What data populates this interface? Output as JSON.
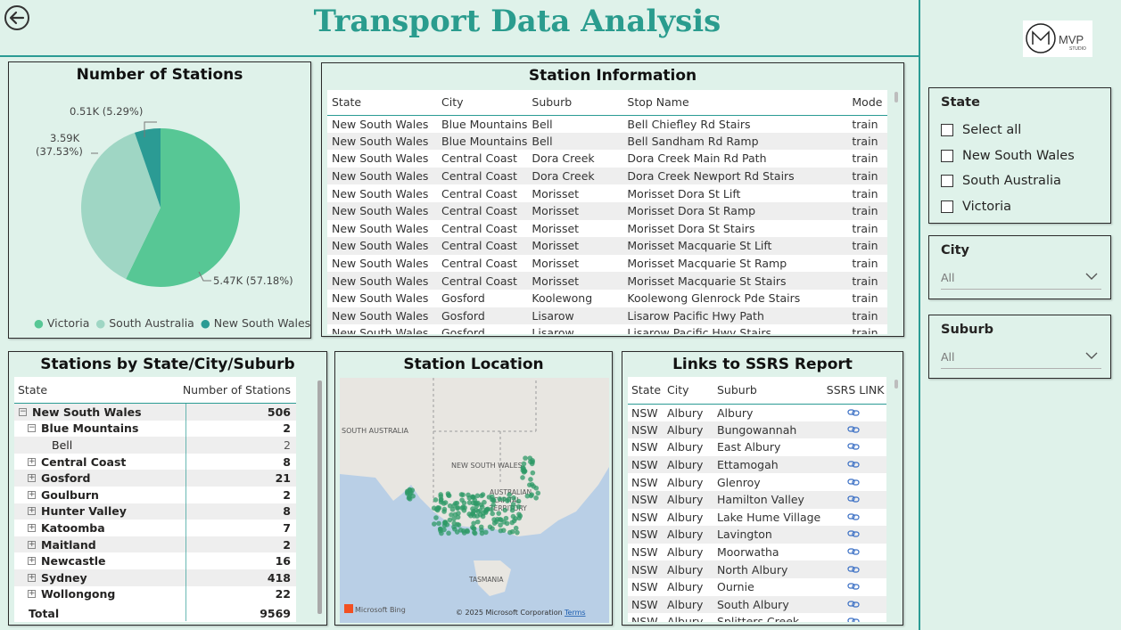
{
  "header": {
    "title": "Transport Data Analysis",
    "logo_text": "MVP",
    "logo_sub": "STUDIO"
  },
  "colors": {
    "title": "#2a9c8e",
    "victoria": "#57c795",
    "south_australia": "#9fd6c4",
    "nsw": "#2b9b94"
  },
  "pie": {
    "title": "Number of Stations",
    "labels": {
      "nsw": "0.51K (5.29%)",
      "sa_1": "3.59K",
      "sa_2": "(37.53%)",
      "vic": "5.47K (57.18%)"
    },
    "legend": [
      "Victoria",
      "South Australia",
      "New South Wales"
    ]
  },
  "chart_data": {
    "type": "pie",
    "title": "Number of Stations",
    "categories": [
      "Victoria",
      "South Australia",
      "New South Wales"
    ],
    "values": [
      5.47,
      3.59,
      0.51
    ],
    "percent": [
      57.18,
      37.53,
      5.29
    ],
    "unit": "K",
    "legend": "bottom"
  },
  "station_info": {
    "title": "Station Information",
    "columns": [
      "State",
      "City",
      "Suburb",
      "Stop Name",
      "Mode"
    ],
    "rows": [
      [
        "New South Wales",
        "Blue Mountains",
        "Bell",
        "Bell Chiefley Rd Stairs",
        "train"
      ],
      [
        "New South Wales",
        "Blue Mountains",
        "Bell",
        "Bell Sandham Rd Ramp",
        "train"
      ],
      [
        "New South Wales",
        "Central Coast",
        "Dora Creek",
        "Dora Creek Main Rd Path",
        "train"
      ],
      [
        "New South Wales",
        "Central Coast",
        "Dora Creek",
        "Dora Creek Newport Rd Stairs",
        "train"
      ],
      [
        "New South Wales",
        "Central Coast",
        "Morisset",
        "Morisset Dora St Lift",
        "train"
      ],
      [
        "New South Wales",
        "Central Coast",
        "Morisset",
        "Morisset Dora St Ramp",
        "train"
      ],
      [
        "New South Wales",
        "Central Coast",
        "Morisset",
        "Morisset Dora St Stairs",
        "train"
      ],
      [
        "New South Wales",
        "Central Coast",
        "Morisset",
        "Morisset Macquarie St Lift",
        "train"
      ],
      [
        "New South Wales",
        "Central Coast",
        "Morisset",
        "Morisset Macquarie St Ramp",
        "train"
      ],
      [
        "New South Wales",
        "Central Coast",
        "Morisset",
        "Morisset Macquarie St Stairs",
        "train"
      ],
      [
        "New South Wales",
        "Gosford",
        "Koolewong",
        "Koolewong Glenrock Pde Stairs",
        "train"
      ],
      [
        "New South Wales",
        "Gosford",
        "Lisarow",
        "Lisarow Pacific Hwy Path",
        "train"
      ],
      [
        "New South Wales",
        "Gosford",
        "Lisarow",
        "Lisarow Pacific Hwy Stairs",
        "train"
      ]
    ]
  },
  "matrix": {
    "title": "Stations by State/City/Suburb",
    "col_state": "State",
    "col_count": "Number of Stations",
    "top": {
      "label": "New South Wales",
      "value": "506"
    },
    "expanded": {
      "label": "Blue Mountains",
      "value": "2"
    },
    "leaf": {
      "label": "Bell",
      "value": "2"
    },
    "cities": [
      {
        "label": "Central Coast",
        "value": "8"
      },
      {
        "label": "Gosford",
        "value": "21"
      },
      {
        "label": "Goulburn",
        "value": "2"
      },
      {
        "label": "Hunter Valley",
        "value": "8"
      },
      {
        "label": "Katoomba",
        "value": "7"
      },
      {
        "label": "Maitland",
        "value": "2"
      },
      {
        "label": "Newcastle",
        "value": "16"
      },
      {
        "label": "Sydney",
        "value": "418"
      },
      {
        "label": "Wollongong",
        "value": "22"
      }
    ],
    "total": {
      "label": "Total",
      "value": "9569"
    }
  },
  "map": {
    "title": "Station Location",
    "labels": {
      "sa": "SOUTH AUSTRALIA",
      "nsw": "NEW SOUTH WALES",
      "act_1": "AUSTRALIAN",
      "act_2": "CAPITAL",
      "act_3": "TERRITORY",
      "tas": "TASMANIA"
    },
    "bing": "Microsoft Bing",
    "copyright": "© 2025 Microsoft Corporation",
    "terms": "Terms"
  },
  "ssrs": {
    "title": "Links to SSRS Report",
    "columns": [
      "State",
      "City",
      "Suburb",
      "SSRS LINK"
    ],
    "rows": [
      [
        "NSW",
        "Albury",
        "Albury"
      ],
      [
        "NSW",
        "Albury",
        "Bungowannah"
      ],
      [
        "NSW",
        "Albury",
        "East Albury"
      ],
      [
        "NSW",
        "Albury",
        "Ettamogah"
      ],
      [
        "NSW",
        "Albury",
        "Glenroy"
      ],
      [
        "NSW",
        "Albury",
        "Hamilton Valley"
      ],
      [
        "NSW",
        "Albury",
        "Lake Hume Village"
      ],
      [
        "NSW",
        "Albury",
        "Lavington"
      ],
      [
        "NSW",
        "Albury",
        "Moorwatha"
      ],
      [
        "NSW",
        "Albury",
        "North Albury"
      ],
      [
        "NSW",
        "Albury",
        "Ournie"
      ],
      [
        "NSW",
        "Albury",
        "South Albury"
      ],
      [
        "NSW",
        "Albury",
        "Splitters Creek"
      ]
    ]
  },
  "filters": {
    "state": {
      "title": "State",
      "options": [
        "Select all",
        "New South Wales",
        "South Australia",
        "Victoria"
      ]
    },
    "city": {
      "title": "City",
      "value": "All"
    },
    "suburb": {
      "title": "Suburb",
      "value": "All"
    }
  }
}
